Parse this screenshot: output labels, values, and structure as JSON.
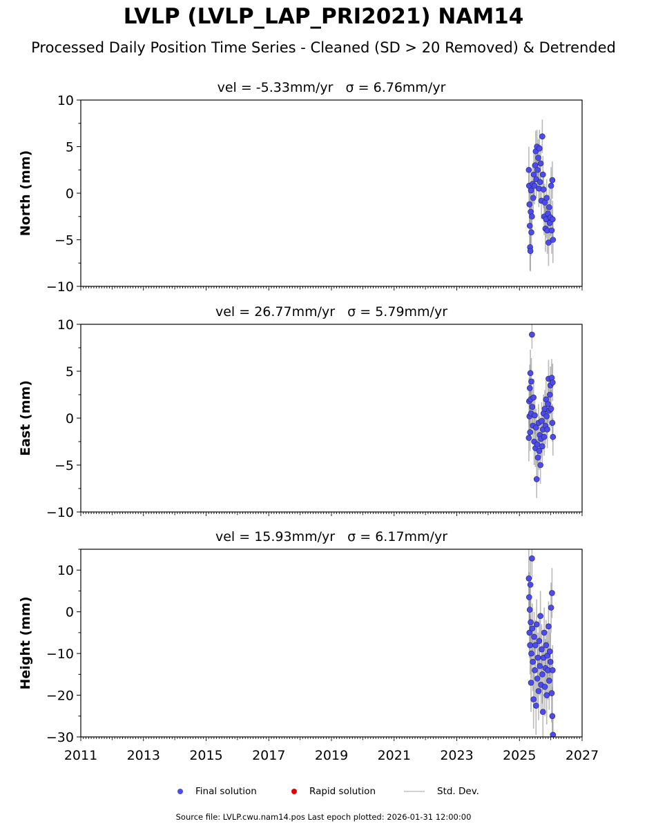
{
  "title": "LVLP (LVLP_LAP_PRI2021) NAM14",
  "subtitle": "Processed Daily Position Time Series - Cleaned (SD > 20 Removed) & Detrended",
  "legend": {
    "final": "Final solution",
    "rapid": "Rapid solution",
    "std": "Std. Dev.",
    "final_color": "#4b4bf0",
    "rapid_color": "#e00000",
    "std_color": "#d0d0d0"
  },
  "source": "Source file: LVLP.cwu.nam14.pos  Last epoch plotted: 2026-01-31 12:00:00",
  "chart_data": [
    {
      "type": "scatter",
      "title": "vel = -5.33mm/yr   σ = 6.76mm/yr",
      "ylabel": "North (mm)",
      "xlim": [
        2011,
        2027
      ],
      "ylim": [
        -10,
        10
      ],
      "yticks": [
        -10,
        -5,
        0,
        5,
        10
      ],
      "xticks": [
        2011,
        2013,
        2015,
        2017,
        2019,
        2021,
        2023,
        2025,
        2027
      ],
      "show_xticklabels": false,
      "points": [
        [
          2025.3,
          2.5,
          2.5
        ],
        [
          2025.31,
          0.8,
          2
        ],
        [
          2025.32,
          -1.2,
          2
        ],
        [
          2025.33,
          -3.5,
          2.5
        ],
        [
          2025.34,
          -5.8,
          2.5
        ],
        [
          2025.35,
          -6.2,
          2.2
        ],
        [
          2025.36,
          -2.0,
          2
        ],
        [
          2025.37,
          0.3,
          2
        ],
        [
          2025.38,
          -4.2,
          2.5
        ],
        [
          2025.4,
          -2.5,
          2
        ],
        [
          2025.42,
          1.0,
          2
        ],
        [
          2025.44,
          -0.5,
          2
        ],
        [
          2025.46,
          2.0,
          2.3
        ],
        [
          2025.48,
          0.8,
          2
        ],
        [
          2025.5,
          3.0,
          2
        ],
        [
          2025.52,
          4.5,
          2.2
        ],
        [
          2025.54,
          1.5,
          2
        ],
        [
          2025.56,
          5.0,
          1.8
        ],
        [
          2025.58,
          2.5,
          2
        ],
        [
          2025.6,
          3.8,
          2
        ],
        [
          2025.62,
          0.5,
          2
        ],
        [
          2025.64,
          4.8,
          2
        ],
        [
          2025.66,
          1.2,
          2
        ],
        [
          2025.68,
          3.2,
          2
        ],
        [
          2025.7,
          -0.8,
          2
        ],
        [
          2025.73,
          6.1,
          1.8
        ],
        [
          2025.75,
          2.0,
          2
        ],
        [
          2025.77,
          0.4,
          2
        ],
        [
          2025.79,
          -2.5,
          2
        ],
        [
          2025.81,
          -1.0,
          2
        ],
        [
          2025.83,
          -3.8,
          2.5
        ],
        [
          2025.85,
          -2.8,
          2
        ],
        [
          2025.87,
          -0.5,
          2
        ],
        [
          2025.89,
          -4.0,
          2.5
        ],
        [
          2025.91,
          -2.2,
          2
        ],
        [
          2025.93,
          -5.3,
          2.5
        ],
        [
          2025.95,
          -1.5,
          2
        ],
        [
          2025.97,
          -3.2,
          2
        ],
        [
          2025.99,
          -2.6,
          2
        ],
        [
          2026.01,
          0.8,
          2
        ],
        [
          2026.03,
          -4.0,
          2.5
        ],
        [
          2026.05,
          1.4,
          2
        ],
        [
          2026.06,
          -2.8,
          2
        ],
        [
          2026.07,
          -5.0,
          2.5
        ]
      ]
    },
    {
      "type": "scatter",
      "title": "vel = 26.77mm/yr   σ = 5.79mm/yr",
      "ylabel": "East (mm)",
      "xlim": [
        2011,
        2027
      ],
      "ylim": [
        -10,
        10
      ],
      "yticks": [
        -10,
        -5,
        0,
        5,
        10
      ],
      "xticks": [
        2011,
        2013,
        2015,
        2017,
        2019,
        2021,
        2023,
        2025,
        2027
      ],
      "show_xticklabels": false,
      "points": [
        [
          2025.3,
          -2.1,
          2.5
        ],
        [
          2025.31,
          1.8,
          2.5
        ],
        [
          2025.32,
          0.2,
          2
        ],
        [
          2025.33,
          3.2,
          2.5
        ],
        [
          2025.34,
          -1.5,
          2
        ],
        [
          2025.35,
          4.8,
          2.5
        ],
        [
          2025.36,
          2.0,
          2
        ],
        [
          2025.37,
          0.5,
          2
        ],
        [
          2025.38,
          3.9,
          2.5
        ],
        [
          2025.4,
          8.9,
          1.5
        ],
        [
          2025.41,
          1.2,
          2
        ],
        [
          2025.43,
          -0.8,
          2
        ],
        [
          2025.45,
          2.2,
          2
        ],
        [
          2025.47,
          -2.5,
          2.5
        ],
        [
          2025.49,
          0.3,
          2
        ],
        [
          2025.51,
          -3.2,
          2
        ],
        [
          2025.53,
          -1.0,
          2
        ],
        [
          2025.55,
          -6.5,
          2
        ],
        [
          2025.57,
          -2.8,
          2
        ],
        [
          2025.59,
          -4.2,
          2
        ],
        [
          2025.61,
          -0.5,
          2
        ],
        [
          2025.63,
          -3.5,
          2
        ],
        [
          2025.65,
          -1.8,
          2
        ],
        [
          2025.67,
          -5.0,
          2
        ],
        [
          2025.69,
          -2.2,
          2
        ],
        [
          2025.71,
          -0.3,
          2
        ],
        [
          2025.73,
          -3.0,
          2
        ],
        [
          2025.75,
          -1.2,
          2
        ],
        [
          2025.77,
          0.5,
          2
        ],
        [
          2025.79,
          -2.0,
          2
        ],
        [
          2025.81,
          1.0,
          2
        ],
        [
          2025.83,
          -0.8,
          2
        ],
        [
          2025.85,
          2.0,
          2
        ],
        [
          2025.87,
          0.2,
          2
        ],
        [
          2025.89,
          -1.2,
          2
        ],
        [
          2025.91,
          1.5,
          2
        ],
        [
          2025.93,
          4.2,
          2
        ],
        [
          2025.95,
          0.8,
          2
        ],
        [
          2025.97,
          2.5,
          2
        ],
        [
          2025.99,
          3.5,
          2
        ],
        [
          2026.01,
          1.0,
          2
        ],
        [
          2026.03,
          4.3,
          2
        ],
        [
          2026.05,
          -0.5,
          2
        ],
        [
          2026.06,
          3.8,
          2
        ],
        [
          2026.07,
          -2.0,
          2
        ]
      ]
    },
    {
      "type": "scatter",
      "title": "vel = 15.93mm/yr   σ = 6.17mm/yr",
      "ylabel": "Height (mm)",
      "xlim": [
        2011,
        2027
      ],
      "ylim": [
        -30,
        15
      ],
      "yticks": [
        -30,
        -20,
        -10,
        0,
        10
      ],
      "xticks": [
        2011,
        2013,
        2015,
        2017,
        2019,
        2021,
        2023,
        2025,
        2027
      ],
      "show_xticklabels": true,
      "points": [
        [
          2025.3,
          8.0,
          7
        ],
        [
          2025.31,
          3.5,
          6
        ],
        [
          2025.32,
          -5.0,
          6
        ],
        [
          2025.33,
          0.5,
          6
        ],
        [
          2025.34,
          -8.0,
          7
        ],
        [
          2025.35,
          6.5,
          6
        ],
        [
          2025.36,
          -2.5,
          6
        ],
        [
          2025.37,
          -17.0,
          7
        ],
        [
          2025.38,
          -10.0,
          6
        ],
        [
          2025.4,
          12.8,
          5
        ],
        [
          2025.41,
          -4.0,
          6
        ],
        [
          2025.43,
          -12.0,
          7
        ],
        [
          2025.45,
          -21.0,
          7
        ],
        [
          2025.47,
          -6.0,
          6
        ],
        [
          2025.49,
          -14.0,
          7
        ],
        [
          2025.51,
          -8.0,
          6
        ],
        [
          2025.53,
          -22.5,
          7
        ],
        [
          2025.55,
          -3.0,
          6
        ],
        [
          2025.57,
          -16.0,
          7
        ],
        [
          2025.59,
          -11.0,
          6
        ],
        [
          2025.61,
          -19.0,
          7
        ],
        [
          2025.63,
          -7.0,
          6
        ],
        [
          2025.65,
          -13.0,
          7
        ],
        [
          2025.67,
          -1.0,
          6
        ],
        [
          2025.69,
          -17.5,
          7
        ],
        [
          2025.71,
          -9.0,
          6
        ],
        [
          2025.73,
          -15.0,
          7
        ],
        [
          2025.75,
          -24.0,
          7
        ],
        [
          2025.77,
          -11.0,
          6
        ],
        [
          2025.79,
          -5.0,
          6
        ],
        [
          2025.81,
          -18.0,
          7
        ],
        [
          2025.83,
          -13.5,
          7
        ],
        [
          2025.85,
          -8.0,
          6
        ],
        [
          2025.87,
          -20.0,
          7
        ],
        [
          2025.89,
          -10.5,
          6
        ],
        [
          2025.91,
          -14.0,
          7
        ],
        [
          2025.93,
          -3.5,
          6
        ],
        [
          2025.95,
          -16.5,
          7
        ],
        [
          2025.97,
          -9.5,
          6
        ],
        [
          2025.99,
          -12.0,
          7
        ],
        [
          2026.01,
          1.0,
          6
        ],
        [
          2026.03,
          -19.5,
          7
        ],
        [
          2026.04,
          4.5,
          6
        ],
        [
          2026.05,
          -25.0,
          7
        ],
        [
          2026.06,
          -14.0,
          6
        ],
        [
          2026.07,
          -29.5,
          5
        ]
      ]
    }
  ]
}
